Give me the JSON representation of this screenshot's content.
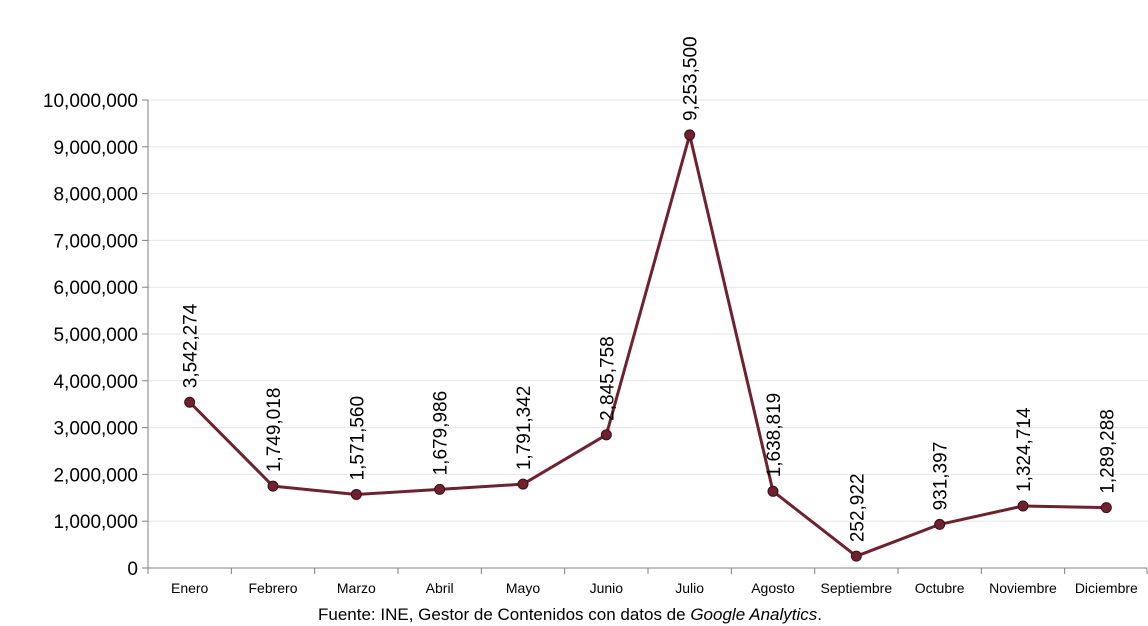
{
  "chart_data": {
    "type": "line",
    "title": "",
    "xlabel": "",
    "ylabel": "",
    "categories": [
      "Enero",
      "Febrero",
      "Marzo",
      "Abril",
      "Mayo",
      "Junio",
      "Julio",
      "Agosto",
      "Septiembre",
      "Octubre",
      "Noviembre",
      "Diciembre"
    ],
    "series": [
      {
        "values": [
          3542274,
          1749018,
          1571560,
          1679986,
          1791342,
          2845758,
          9253500,
          1638819,
          252922,
          931397,
          1324714,
          1289288
        ],
        "labels": [
          "3,542,274",
          "1,749,018",
          "1,571,560",
          "1,679,986",
          "1,791,342",
          "2,845,758",
          "9,253,500",
          "1,638,819",
          "252,922",
          "931,397",
          "1,324,714",
          "1,289,288"
        ],
        "color": "#6e2230"
      }
    ],
    "ylim": [
      0,
      10000000
    ],
    "yticks": [
      0,
      1000000,
      2000000,
      3000000,
      4000000,
      5000000,
      6000000,
      7000000,
      8000000,
      9000000,
      10000000
    ],
    "ytick_labels": [
      "0",
      "1,000,000",
      "2,000,000",
      "3,000,000",
      "4,000,000",
      "5,000,000",
      "6,000,000",
      "7,000,000",
      "8,000,000",
      "9,000,000",
      "10,000,000"
    ],
    "grid": true,
    "legend": "none",
    "gridline_color": "#e6e6e6",
    "axis_color": "#808080"
  },
  "source": {
    "prefix": "Fuente: INE, Gestor de Contenidos con datos de ",
    "italic": "Google Analytics",
    "suffix": "."
  }
}
